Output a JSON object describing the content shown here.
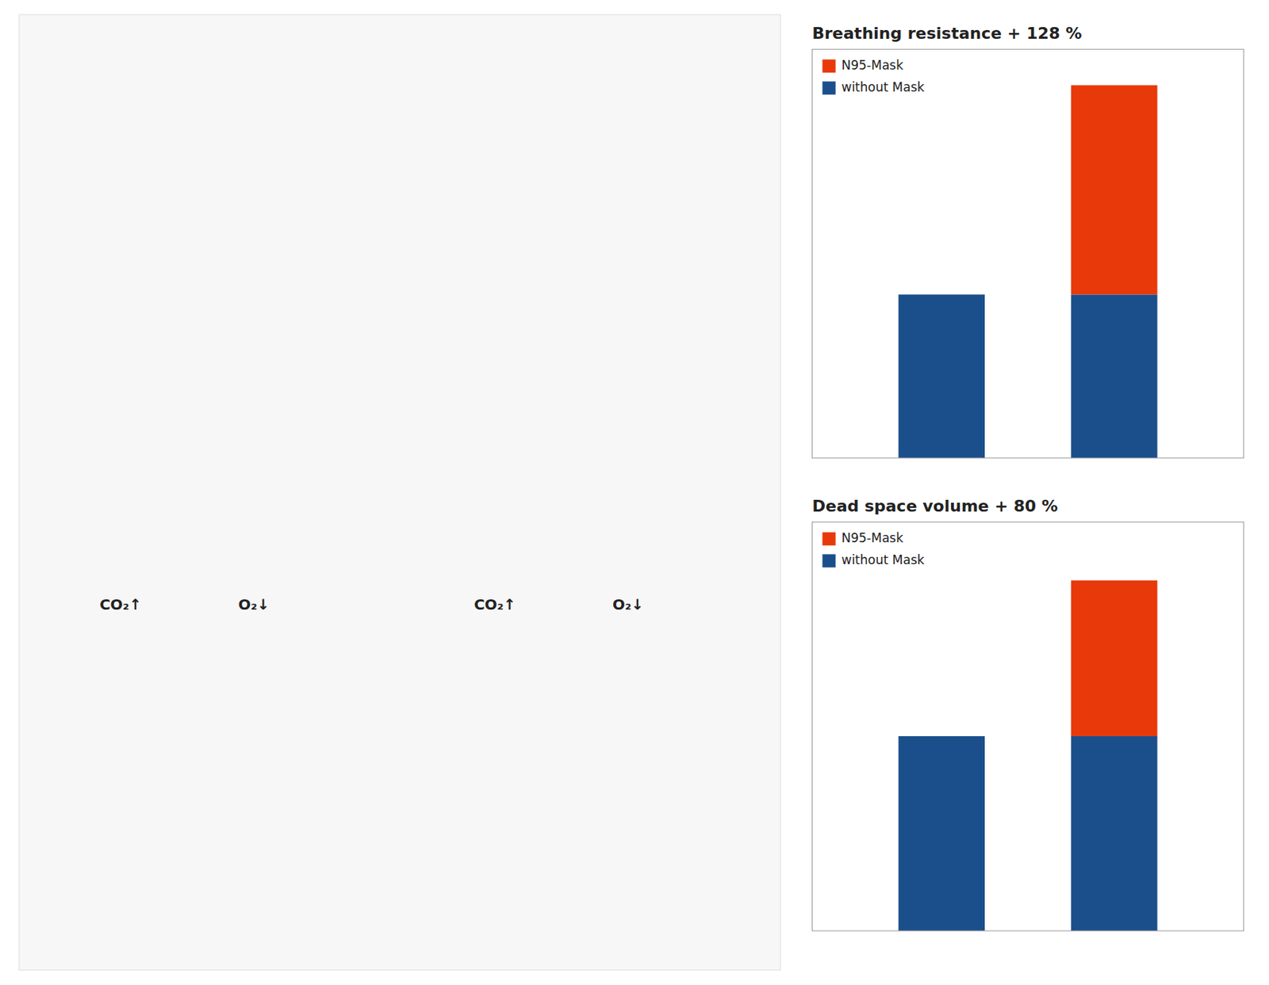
{
  "chart_data": [
    {
      "type": "bar",
      "title": "Breathing resistance  + 128 %",
      "categories": [
        null,
        null
      ],
      "series": [
        {
          "name": "without Mask",
          "color": "#1b4f8c",
          "values": [
            100,
            100
          ]
        },
        {
          "name": "N95-Mask",
          "color": "#e8390a",
          "values": [
            0,
            128
          ]
        }
      ],
      "stacked": true,
      "ylim": [
        0,
        250
      ],
      "tick_labels": false,
      "grid": false,
      "legend": "upper left"
    },
    {
      "type": "bar",
      "title": "Dead space volume  + 80 %",
      "categories": [
        null,
        null
      ],
      "series": [
        {
          "name": "without Mask",
          "color": "#1b4f8c",
          "values": [
            100,
            100
          ]
        },
        {
          "name": "N95-Mask",
          "color": "#e8390a",
          "values": [
            0,
            80
          ]
        }
      ],
      "stacked": true,
      "ylim": [
        0,
        210
      ],
      "tick_labels": false,
      "grid": false,
      "legend": "upper left"
    }
  ],
  "annotations": [
    "CO₂↑",
    "O₂↓",
    "CO₂↑",
    "O₂↓"
  ]
}
